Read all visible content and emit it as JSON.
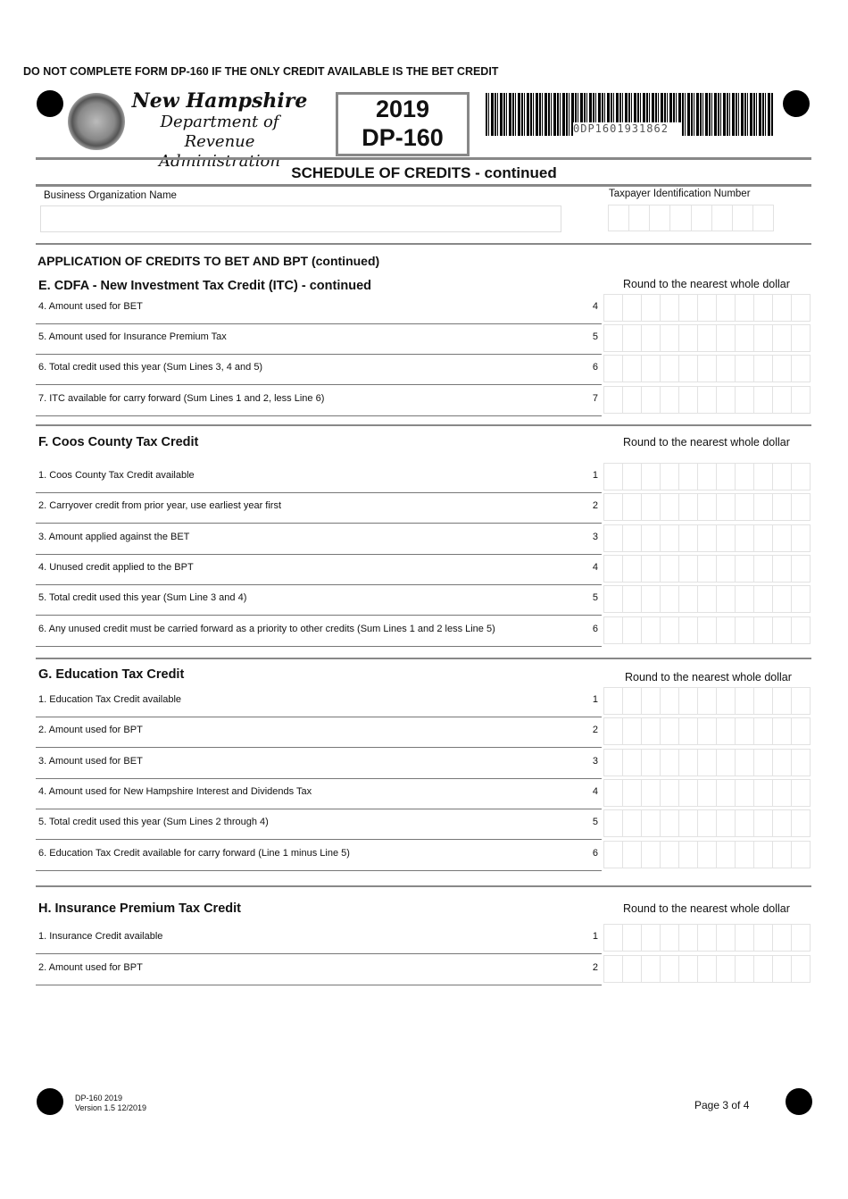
{
  "header": {
    "warning": "DO NOT COMPLETE FORM DP-160 IF THE ONLY CREDIT AVAILABLE IS THE BET CREDIT",
    "agency_line1": "New Hampshire",
    "agency_line2": "Department of",
    "agency_line3": "Revenue Administration",
    "year": "2019",
    "form": "DP-160",
    "barcode_text": "0DP1601931862"
  },
  "title": "SCHEDULE OF CREDITS - continued",
  "fields": {
    "business_name_label": "Business Organization Name",
    "tin_label": "Taxpayer Identification Number",
    "business_name": "",
    "tin": ""
  },
  "application_heading": "APPLICATION OF CREDITS TO BET AND BPT (continued)",
  "sections": [
    {
      "title": "E. CDFA - New Investment Tax Credit (ITC) - continued",
      "round": "Round to the nearest whole dollar",
      "rows": [
        {
          "num": "4",
          "text": "4.  Amount used for BET"
        },
        {
          "num": "5",
          "text": "5.  Amount used for Insurance Premium Tax"
        },
        {
          "num": "6",
          "text": "6.  Total credit used this year (Sum Lines 3, 4 and 5)"
        },
        {
          "num": "7",
          "text": "7.  ITC available for carry forward (Sum Lines 1 and 2, less Line 6)"
        }
      ]
    },
    {
      "title": "F. Coos County Tax Credit",
      "round": "Round to the nearest whole dollar",
      "rows": [
        {
          "num": "1",
          "text": "1.  Coos County Tax Credit available"
        },
        {
          "num": "2",
          "text": "2.  Carryover credit from prior year, use earliest year first"
        },
        {
          "num": "3",
          "text": "3.  Amount applied against the BET"
        },
        {
          "num": "4",
          "text": "4.  Unused credit applied to the BPT"
        },
        {
          "num": "5",
          "text": "5.  Total credit used this year (Sum Line 3 and 4)"
        },
        {
          "num": "6",
          "text": "6.  Any unused credit must be carried forward as a priority to other credits (Sum Lines 1 and 2 less Line 5)"
        }
      ]
    },
    {
      "title": "G. Education Tax Credit",
      "round": "Round to the nearest whole dollar",
      "rows": [
        {
          "num": "1",
          "text": "1.  Education Tax Credit available"
        },
        {
          "num": "2",
          "text": "2.  Amount used for BPT"
        },
        {
          "num": "3",
          "text": "3.  Amount used for BET"
        },
        {
          "num": "4",
          "text": "4.  Amount used for New Hampshire Interest and Dividends Tax"
        },
        {
          "num": "5",
          "text": "5.  Total credit used this year (Sum Lines 2 through 4)"
        },
        {
          "num": "6",
          "text": "6.  Education Tax Credit available for carry forward (Line 1 minus Line 5)"
        }
      ]
    },
    {
      "title": "H. Insurance Premium Tax Credit",
      "round": "Round to the nearest whole dollar",
      "rows": [
        {
          "num": "1",
          "text": "1.  Insurance Credit available"
        },
        {
          "num": "2",
          "text": "2.  Amount used for BPT"
        }
      ]
    }
  ],
  "footer": {
    "form_year": "DP-160  2019",
    "version": "Version 1.5 12/2019",
    "page": "Page 3 of 4"
  }
}
